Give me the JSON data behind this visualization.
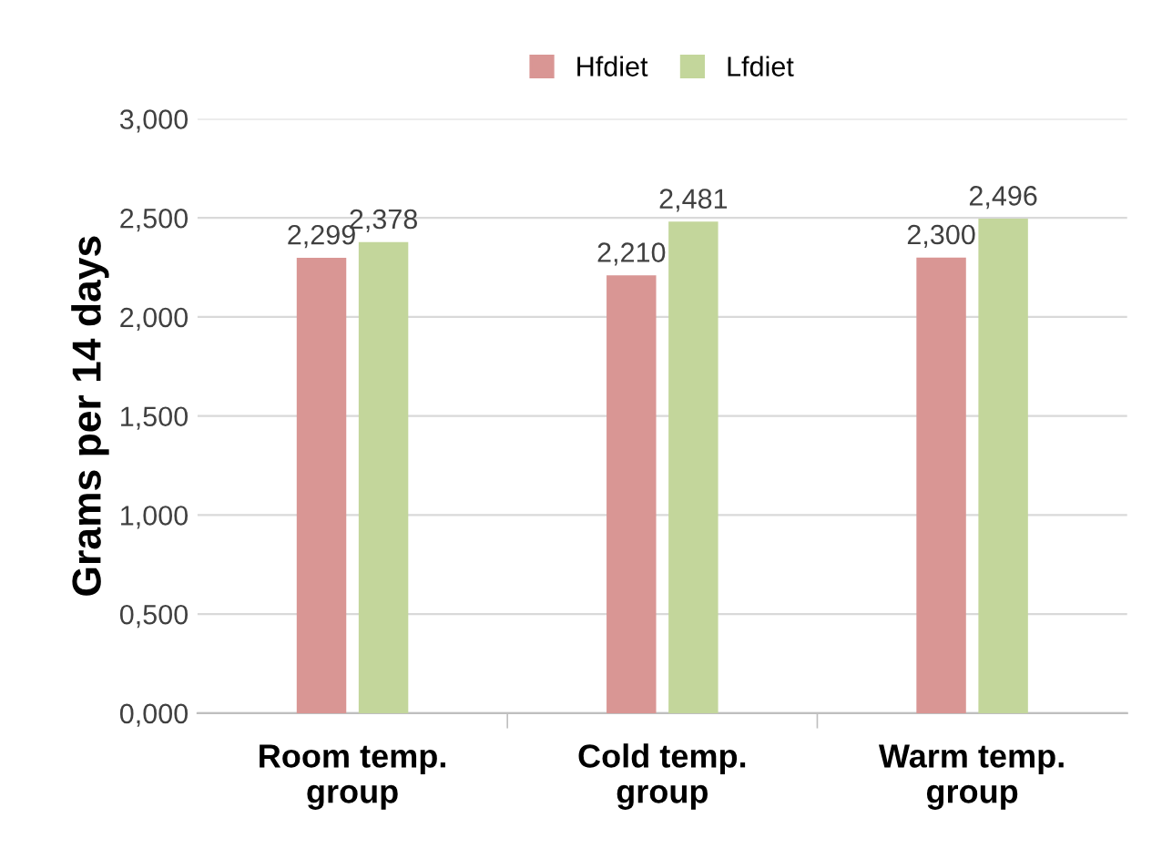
{
  "chart_data": {
    "type": "bar",
    "ylabel": "Grams per 14 days",
    "categories": [
      "Room temp.\ngroup",
      "Cold temp.\ngroup",
      "Warm temp.\ngroup"
    ],
    "series": [
      {
        "name": "Hfdiet",
        "color": "#d99694",
        "values": [
          2.299,
          2.21,
          2.3
        ],
        "value_labels": [
          "2,299",
          "2,210",
          "2,300"
        ]
      },
      {
        "name": "Lfdiet",
        "color": "#c3d69b",
        "values": [
          2.378,
          2.481,
          2.496
        ],
        "value_labels": [
          "2,378",
          "2,481",
          "2,496"
        ]
      }
    ],
    "ylim": [
      0,
      3
    ],
    "yticks": [
      {
        "value": 0,
        "label": "0,000"
      },
      {
        "value": 0.5,
        "label": "0,500"
      },
      {
        "value": 1,
        "label": "1,000"
      },
      {
        "value": 1.5,
        "label": "1,500"
      },
      {
        "value": 2,
        "label": "2,000"
      },
      {
        "value": 2.5,
        "label": "2,500"
      },
      {
        "value": 3,
        "label": "3,000"
      }
    ],
    "grid": "y",
    "legend": "top"
  }
}
